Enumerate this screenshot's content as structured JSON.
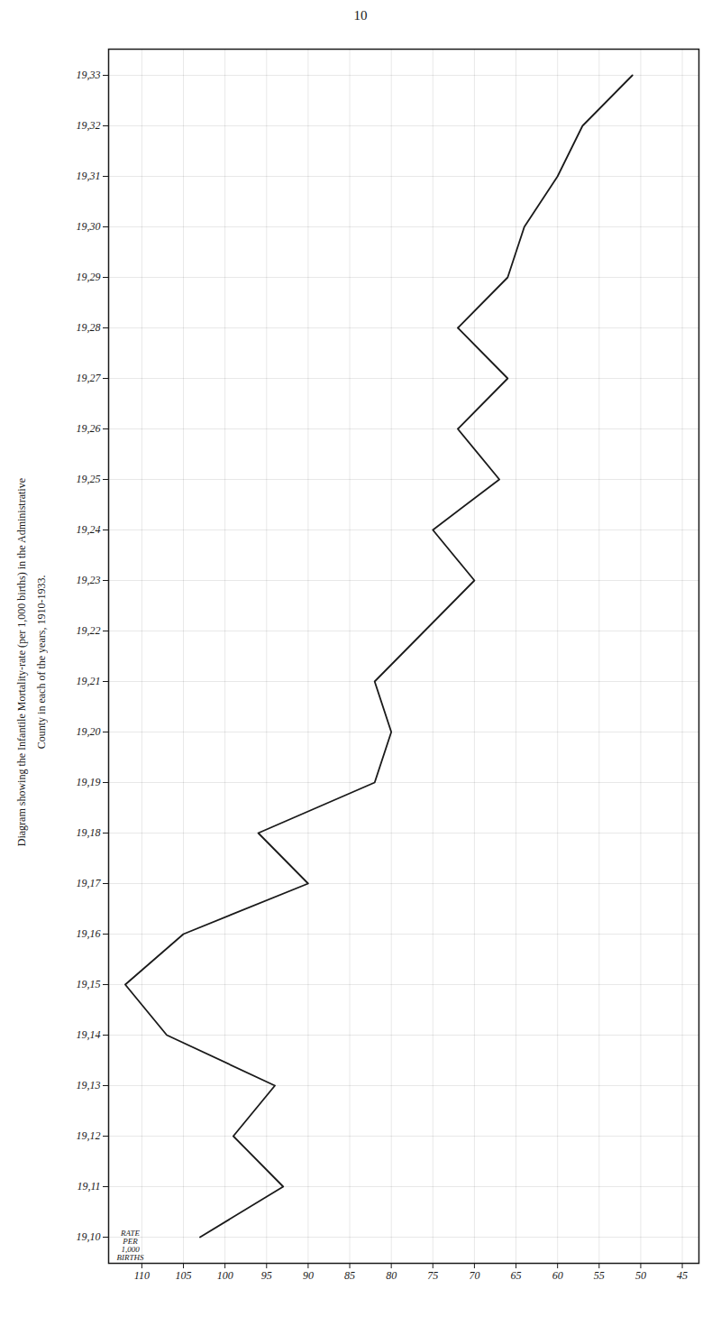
{
  "chart_data": {
    "type": "line",
    "title": "Diagram showing the Infantile Mortality-rate (per 1,000 births) in the Administrative",
    "subtitle": "County in each of the years, 1910-1933.",
    "annotations": [
      {
        "text": "10"
      }
    ],
    "xlabel": "RATE\nPER\n1,000\nBIRTHS",
    "orientation": "horizontal",
    "categories": [
      "19,10",
      "19,11",
      "19,12",
      "19,13",
      "19,14",
      "19,15",
      "19,16",
      "19,17",
      "19,18",
      "19,19",
      "19,20",
      "19,21",
      "19,22",
      "19,23",
      "19,24",
      "19,25",
      "19,26",
      "19,27",
      "19,28",
      "19,29",
      "19,30",
      "19,31",
      "19,32",
      "19,33"
    ],
    "values": [
      103,
      93,
      99,
      94,
      107,
      112,
      105,
      90,
      96,
      82,
      80,
      82,
      76,
      70,
      75,
      67,
      72,
      66,
      72,
      66,
      64,
      60,
      57,
      51
    ],
    "color": "#1a1a1a",
    "xlim": [
      114,
      43
    ],
    "xticks": [
      110,
      105,
      100,
      95,
      90,
      85,
      80,
      75,
      70,
      65,
      60,
      55,
      50,
      45
    ],
    "grid": true
  }
}
